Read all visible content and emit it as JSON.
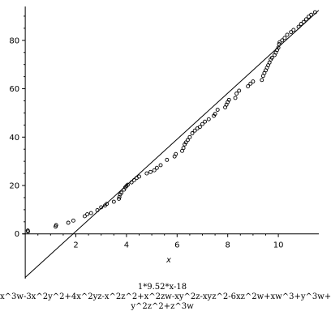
{
  "chart_data": {
    "type": "scatter",
    "title": "",
    "xlabel": "x",
    "ylabel": "",
    "xlim": [
      -0.1,
      11.6
    ],
    "ylim": [
      -18.5,
      94
    ],
    "x_ticks": [
      "2",
      "4",
      "6",
      "8",
      "10"
    ],
    "y_ticks": [
      "0",
      "20",
      "40",
      "60",
      "80"
    ],
    "grid": false,
    "legend": "none",
    "marker": "circle-open",
    "color": "#000000",
    "line": {
      "slope": 9.52,
      "intercept": -18,
      "x_range": [
        0,
        11.6
      ]
    },
    "points": [
      [
        0.1,
        1.4
      ],
      [
        0.11,
        1.0
      ],
      [
        1.2,
        3.0
      ],
      [
        1.22,
        3.6
      ],
      [
        1.7,
        4.6
      ],
      [
        1.9,
        5.5
      ],
      [
        2.35,
        7.3
      ],
      [
        2.45,
        8.1
      ],
      [
        2.6,
        8.6
      ],
      [
        2.85,
        9.8
      ],
      [
        3.0,
        11.0
      ],
      [
        3.15,
        11.7
      ],
      [
        3.22,
        12.4
      ],
      [
        3.5,
        13.3
      ],
      [
        3.7,
        14.5
      ],
      [
        3.72,
        15.2
      ],
      [
        3.75,
        16.3
      ],
      [
        3.8,
        17.0
      ],
      [
        3.9,
        18.3
      ],
      [
        3.95,
        19.2
      ],
      [
        4.0,
        19.8
      ],
      [
        4.05,
        20.3
      ],
      [
        4.2,
        21.3
      ],
      [
        4.3,
        22.2
      ],
      [
        4.4,
        23.1
      ],
      [
        4.5,
        23.7
      ],
      [
        4.8,
        25.0
      ],
      [
        4.95,
        25.6
      ],
      [
        5.1,
        26.3
      ],
      [
        5.2,
        27.3
      ],
      [
        5.35,
        28.4
      ],
      [
        5.6,
        30.6
      ],
      [
        5.9,
        32.0
      ],
      [
        5.95,
        33.0
      ],
      [
        6.2,
        34.3
      ],
      [
        6.25,
        35.5
      ],
      [
        6.3,
        37.0
      ],
      [
        6.35,
        37.8
      ],
      [
        6.42,
        38.8
      ],
      [
        6.5,
        40.0
      ],
      [
        6.6,
        41.6
      ],
      [
        6.7,
        42.7
      ],
      [
        6.8,
        43.6
      ],
      [
        6.9,
        44.2
      ],
      [
        7.0,
        45.4
      ],
      [
        7.1,
        46.4
      ],
      [
        7.25,
        47.4
      ],
      [
        7.45,
        48.8
      ],
      [
        7.5,
        49.6
      ],
      [
        7.6,
        51.3
      ],
      [
        7.9,
        52.3
      ],
      [
        7.95,
        53.4
      ],
      [
        8.0,
        54.5
      ],
      [
        8.05,
        55.4
      ],
      [
        8.3,
        56.2
      ],
      [
        8.35,
        58.0
      ],
      [
        8.45,
        59.2
      ],
      [
        8.8,
        61.0
      ],
      [
        8.9,
        62.1
      ],
      [
        9.0,
        63.0
      ],
      [
        9.35,
        63.6
      ],
      [
        9.4,
        65.3
      ],
      [
        9.45,
        66.5
      ],
      [
        9.5,
        67.6
      ],
      [
        9.55,
        68.7
      ],
      [
        9.6,
        69.7
      ],
      [
        9.65,
        70.8
      ],
      [
        9.7,
        72.1
      ],
      [
        9.75,
        72.8
      ],
      [
        9.85,
        73.9
      ],
      [
        9.9,
        74.9
      ],
      [
        9.95,
        76.0
      ],
      [
        10.0,
        77.0
      ],
      [
        10.03,
        78.4
      ],
      [
        10.05,
        79.2
      ],
      [
        10.15,
        80.0
      ],
      [
        10.25,
        81.0
      ],
      [
        10.35,
        82.3
      ],
      [
        10.5,
        83.4
      ],
      [
        10.6,
        84.3
      ],
      [
        10.8,
        85.6
      ],
      [
        10.9,
        86.8
      ],
      [
        11.0,
        87.6
      ],
      [
        11.1,
        88.7
      ],
      [
        11.2,
        89.8
      ],
      [
        11.3,
        90.6
      ],
      [
        11.45,
        91.6
      ]
    ]
  },
  "caption": {
    "line1": "1*9.52*x-18",
    "line2": "x^3w-3x^2y^2+4x^2yz-x^2z^2+x^2zw-xy^2z-xyz^2-6xz^2w+xw^3+y^3w+",
    "line3": "y^2z^2+z^3w"
  }
}
